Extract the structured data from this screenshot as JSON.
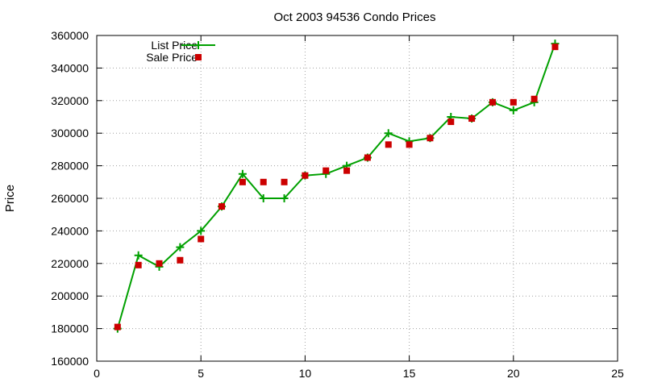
{
  "chart_data": {
    "type": "line",
    "title": "Oct 2003 94536 Condo Prices",
    "xlabel": "",
    "ylabel": "Price",
    "xlim": [
      0,
      25
    ],
    "ylim": [
      160000,
      360000
    ],
    "x_ticks": [
      0,
      5,
      10,
      15,
      20,
      25
    ],
    "y_ticks": [
      160000,
      180000,
      200000,
      220000,
      240000,
      260000,
      280000,
      300000,
      320000,
      340000,
      360000
    ],
    "grid": true,
    "legend_position": "top-left",
    "series": [
      {
        "name": "List Price",
        "style": "line+cross",
        "color": "#00a000",
        "x": [
          1,
          2,
          3,
          4,
          5,
          6,
          7,
          8,
          9,
          10,
          11,
          12,
          13,
          14,
          15,
          16,
          17,
          18,
          19,
          20,
          21,
          22
        ],
        "y": [
          180000,
          225000,
          218000,
          230000,
          240000,
          255000,
          275000,
          260000,
          260000,
          274000,
          275000,
          280000,
          285000,
          300000,
          295000,
          297000,
          310000,
          309000,
          319000,
          314000,
          319000,
          355000
        ]
      },
      {
        "name": "Sale Price",
        "style": "square",
        "color": "#cc0000",
        "x": [
          1,
          2,
          3,
          4,
          5,
          6,
          7,
          8,
          9,
          10,
          11,
          12,
          13,
          14,
          15,
          16,
          17,
          18,
          19,
          20,
          21,
          22
        ],
        "y": [
          181000,
          219000,
          220000,
          222000,
          235000,
          255000,
          270000,
          270000,
          270000,
          274000,
          277000,
          277000,
          285000,
          293000,
          293000,
          297000,
          307000,
          309000,
          319000,
          319000,
          321000,
          353000
        ]
      }
    ]
  }
}
